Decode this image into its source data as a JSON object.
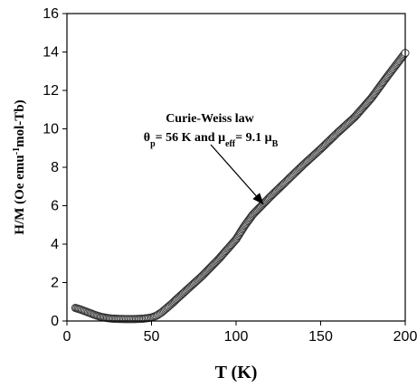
{
  "chart_data": {
    "type": "scatter",
    "xlabel": "T (K)",
    "ylabel": "H/M (Oe emu-1mol-Tb)",
    "ylabel_parts": {
      "before": "H/M (Oe emu",
      "sup": "-1",
      "after": "mol-Tb)"
    },
    "xlim": [
      0,
      200
    ],
    "ylim": [
      0,
      16
    ],
    "xticks": [
      0,
      50,
      100,
      150,
      200
    ],
    "yticks": [
      0,
      2,
      4,
      6,
      8,
      10,
      12,
      14,
      16
    ],
    "grid": false,
    "marker": "open-circle",
    "series": [
      {
        "points": [
          [
            5,
            0.68
          ],
          [
            8,
            0.6
          ],
          [
            11,
            0.5
          ],
          [
            14,
            0.4
          ],
          [
            17,
            0.3
          ],
          [
            20,
            0.22
          ],
          [
            23,
            0.17
          ],
          [
            26,
            0.13
          ],
          [
            30,
            0.11
          ],
          [
            35,
            0.1
          ],
          [
            40,
            0.1
          ],
          [
            45,
            0.12
          ],
          [
            50,
            0.18
          ],
          [
            53,
            0.28
          ],
          [
            56,
            0.45
          ],
          [
            58,
            0.6
          ],
          [
            60,
            0.75
          ],
          [
            62,
            0.9
          ],
          [
            65,
            1.15
          ],
          [
            70,
            1.55
          ],
          [
            80,
            2.35
          ],
          [
            90,
            3.25
          ],
          [
            100,
            4.25
          ],
          [
            105,
            4.95
          ],
          [
            110,
            5.55
          ],
          [
            120,
            6.45
          ],
          [
            130,
            7.3
          ],
          [
            140,
            8.15
          ],
          [
            150,
            8.95
          ],
          [
            160,
            9.8
          ],
          [
            170,
            10.6
          ],
          [
            180,
            11.6
          ],
          [
            190,
            12.8
          ],
          [
            200,
            13.95
          ]
        ]
      }
    ],
    "annotation": {
      "line1": "Curie-Weiss law",
      "theta_symbol": "θ",
      "theta_sub": "p",
      "theta_value": "= 56 K and ",
      "mu_symbol": "μ",
      "mu_sub": "eff",
      "mu_value": "= 9.1 ",
      "muB_symbol": "μ",
      "muB_sub": "B",
      "arrow_target": [
        116,
        6.1
      ]
    }
  }
}
